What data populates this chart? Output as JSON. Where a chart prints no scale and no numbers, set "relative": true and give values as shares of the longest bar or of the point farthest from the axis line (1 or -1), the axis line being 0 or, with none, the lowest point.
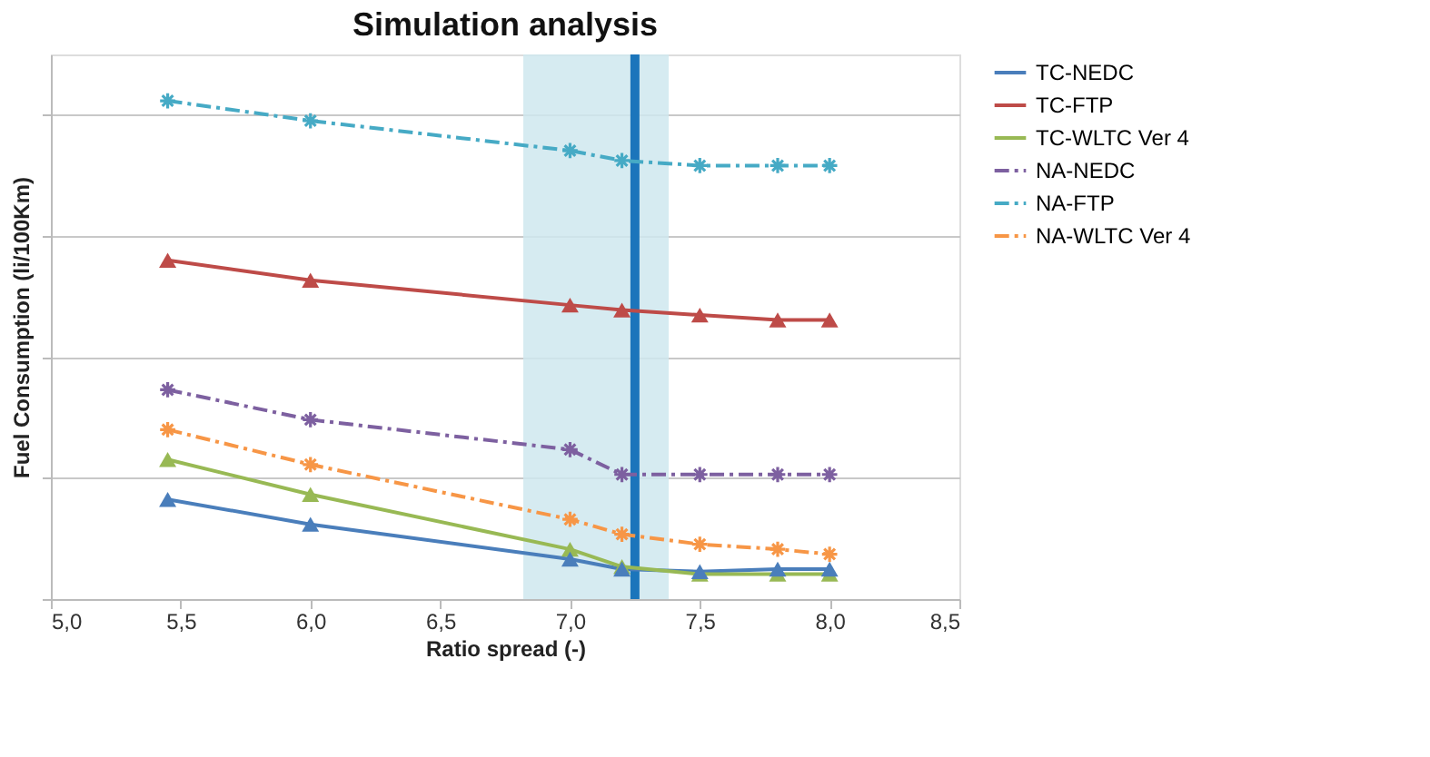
{
  "chart_data": {
    "type": "line",
    "title": "Simulation analysis",
    "xlabel": "Ratio spread (-)",
    "ylabel": "Fuel Consumption (li/100Km)",
    "relative": true,
    "xlim": [
      5.0,
      8.5
    ],
    "xticks": [
      {
        "value": 5.0,
        "label": "5,0"
      },
      {
        "value": 5.5,
        "label": "5,5"
      },
      {
        "value": 6.0,
        "label": "6,0"
      },
      {
        "value": 6.5,
        "label": "6,5"
      },
      {
        "value": 7.0,
        "label": "7,0"
      },
      {
        "value": 7.5,
        "label": "7,5"
      },
      {
        "value": 8.0,
        "label": "8,0"
      },
      {
        "value": 8.5,
        "label": "8,5"
      }
    ],
    "x": [
      5.45,
      6.0,
      7.0,
      7.2,
      7.5,
      7.8,
      8.0
    ],
    "grid": "y",
    "legend": "right",
    "series": [
      {
        "name": "TC-NEDC",
        "color": "#4a7ebb",
        "marker": "triangle",
        "line_style": "solid",
        "values": [
          0.2,
          0.15,
          0.08,
          0.06,
          0.055,
          0.06,
          0.06
        ]
      },
      {
        "name": "TC-FTP",
        "color": "#be4b48",
        "marker": "triangle",
        "line_style": "solid",
        "values": [
          0.68,
          0.64,
          0.59,
          0.58,
          0.57,
          0.56,
          0.56
        ]
      },
      {
        "name": "TC-WLTC Ver 4",
        "color": "#98b954",
        "marker": "triangle",
        "line_style": "solid",
        "values": [
          0.28,
          0.21,
          0.1,
          0.065,
          0.05,
          0.05,
          0.05
        ]
      },
      {
        "name": "NA-NEDC",
        "color": "#7d60a0",
        "marker": "cross",
        "line_style": "dashed",
        "values": [
          0.42,
          0.36,
          0.3,
          0.25,
          0.25,
          0.25,
          0.25
        ]
      },
      {
        "name": "NA-FTP",
        "color": "#46aac5",
        "marker": "cross",
        "line_style": "dashed",
        "values": [
          1.0,
          0.96,
          0.9,
          0.88,
          0.87,
          0.87,
          0.87
        ]
      },
      {
        "name": "NA-WLTC Ver 4",
        "color": "#f79646",
        "marker": "cross",
        "line_style": "dashed",
        "values": [
          0.34,
          0.27,
          0.16,
          0.13,
          0.11,
          0.1,
          0.09
        ]
      }
    ],
    "bands": [
      {
        "axis": "x",
        "from": 6.82,
        "to": 7.38,
        "color": "#cfe8ee"
      }
    ],
    "ref_lines": [
      {
        "axis": "x",
        "value": 7.25,
        "color": "#1b75bb"
      }
    ]
  }
}
